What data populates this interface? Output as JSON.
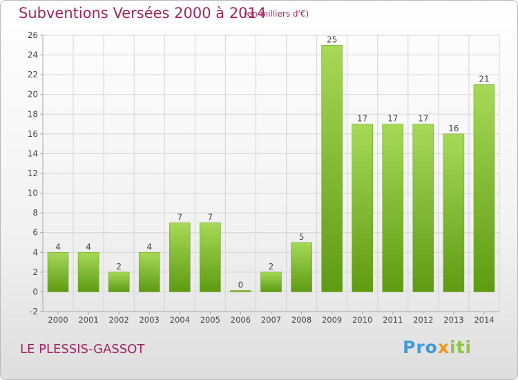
{
  "header": {
    "title": "Subventions Versées 2000 à 2014",
    "subtitle": "(en milliers d'€)"
  },
  "footer": {
    "commune": "LE PLESSIS-GASSOT",
    "brand": [
      "Pro",
      "x",
      "iti"
    ]
  },
  "colors": {
    "title": "#a0255f",
    "bar_light": "#a6d957",
    "bar_dark": "#5e9b12",
    "grid": "#d4d4d4",
    "axis": "#a8a8a8"
  },
  "chart_data": {
    "type": "bar",
    "categories": [
      "2000",
      "2001",
      "2002",
      "2003",
      "2004",
      "2005",
      "2006",
      "2007",
      "2008",
      "2009",
      "2010",
      "2011",
      "2012",
      "2013",
      "2014"
    ],
    "values": [
      4,
      4,
      2,
      4,
      7,
      7,
      0,
      2,
      5,
      25,
      17,
      17,
      17,
      16,
      21
    ],
    "data_labels": [
      "4",
      "4",
      "2",
      "4",
      "7",
      "7",
      "0",
      "2",
      "5",
      "25",
      "17",
      "17",
      "17",
      "16",
      "21"
    ],
    "ylim": [
      -2,
      26
    ],
    "yticks": [
      "-2",
      "0",
      "2",
      "4",
      "6",
      "8",
      "10",
      "12",
      "14",
      "16",
      "18",
      "20",
      "22",
      "24",
      "26"
    ],
    "grid": true
  }
}
